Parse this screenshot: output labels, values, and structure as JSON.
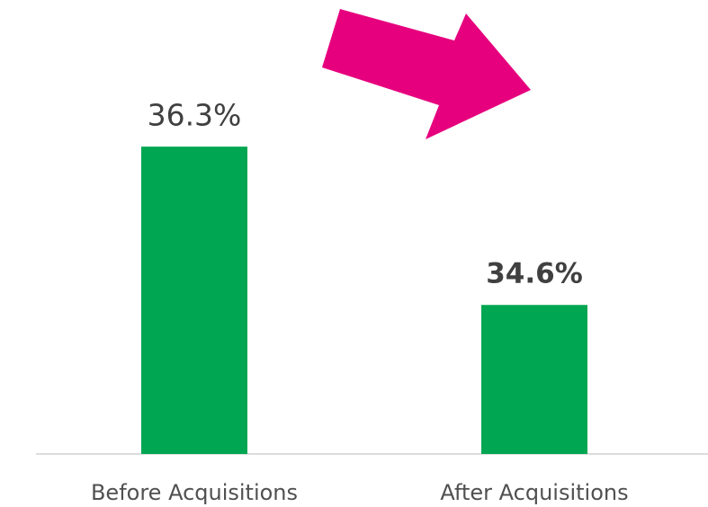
{
  "chart_data": {
    "type": "bar",
    "categories": [
      "Before Acquisitions",
      "After Acquisitions"
    ],
    "values": [
      36.3,
      34.6
    ],
    "value_labels": [
      "36.3%",
      "34.6%"
    ],
    "color": "#00a651",
    "ylim": [
      33,
      37
    ]
  }
}
